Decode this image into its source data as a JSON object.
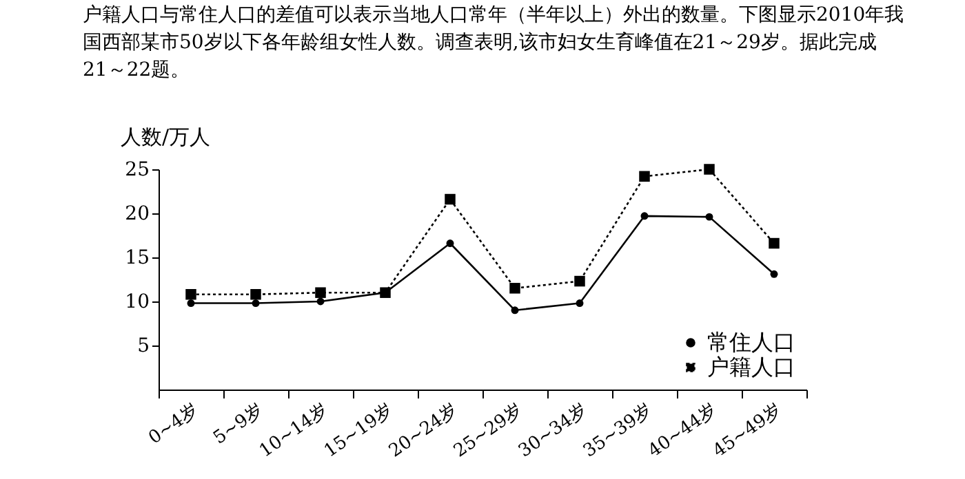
{
  "chart_data": {
    "type": "line",
    "title": "户籍人口与常住人口的差值可以表示当地人口常年（半年以上）外出的数量。下图显示2010年我国西部某市50岁以下各年龄组女性人数。调查表明,该市妇女生育峰值在21～29岁。据此完成21～22题。",
    "ylabel": "人数/万人",
    "categories": [
      "0~4岁",
      "5~9岁",
      "10~14岁",
      "15~19岁",
      "20~24岁",
      "25~29岁",
      "30~34岁",
      "35~39岁",
      "40~44岁",
      "45~49岁"
    ],
    "series": [
      {
        "name": "常住人口",
        "color": "#000000",
        "marker": "circle",
        "line_style": "solid",
        "values": [
          9.8,
          9.8,
          10.0,
          11.0,
          16.6,
          9.0,
          9.8,
          19.7,
          19.6,
          13.1
        ]
      },
      {
        "name": "户籍人口",
        "color": "#000000",
        "marker": "square",
        "line_style": "dotted",
        "values": [
          10.8,
          10.8,
          11.0,
          11.0,
          21.6,
          11.5,
          12.3,
          24.2,
          25.0,
          16.6
        ]
      }
    ],
    "ylim": [
      0,
      25
    ],
    "yticks": [
      5,
      10,
      15,
      20,
      25
    ],
    "grid": false,
    "legend": "bottom right"
  }
}
